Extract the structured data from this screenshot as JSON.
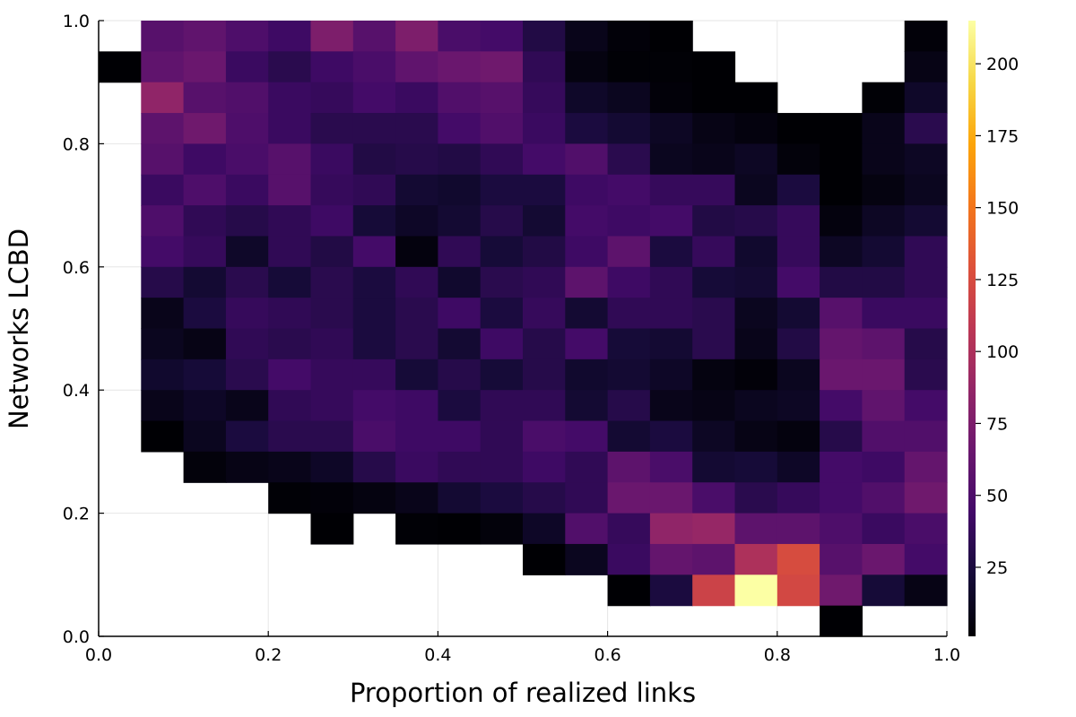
{
  "chart_data": {
    "type": "heatmap",
    "xlabel": "Proportion of realized links",
    "ylabel": "Networks LCBD",
    "xlim": [
      0.0,
      1.0
    ],
    "ylim": [
      0.0,
      1.0
    ],
    "grid": true,
    "legend": "colorbar-right",
    "x_ticks": [
      "0.0",
      "0.2",
      "0.4",
      "0.6",
      "0.8",
      "1.0"
    ],
    "y_ticks": [
      "0.0",
      "0.2",
      "0.4",
      "0.6",
      "0.8",
      "1.0"
    ],
    "colorbar": {
      "colormap": "inferno",
      "min": 1,
      "max": 215,
      "ticks": [
        25,
        50,
        75,
        100,
        125,
        150,
        175,
        200
      ],
      "tick_labels": [
        "25",
        "50",
        "75",
        "100",
        "125",
        "150",
        "175",
        "200"
      ]
    },
    "x_bin_width": 0.05,
    "y_bin_width": 0.05,
    "cells": [
      [
        0.05,
        0.95,
        55
      ],
      [
        0.1,
        0.95,
        60
      ],
      [
        0.15,
        0.95,
        50
      ],
      [
        0.2,
        0.95,
        42
      ],
      [
        0.25,
        0.95,
        75
      ],
      [
        0.3,
        0.95,
        55
      ],
      [
        0.35,
        0.95,
        75
      ],
      [
        0.4,
        0.95,
        48
      ],
      [
        0.45,
        0.95,
        45
      ],
      [
        0.5,
        0.95,
        28
      ],
      [
        0.55,
        0.95,
        10
      ],
      [
        0.6,
        0.95,
        3
      ],
      [
        0.65,
        0.95,
        1
      ],
      [
        0.95,
        0.95,
        3
      ],
      [
        0.0,
        0.9,
        1
      ],
      [
        0.05,
        0.9,
        60
      ],
      [
        0.1,
        0.9,
        65
      ],
      [
        0.15,
        0.9,
        40
      ],
      [
        0.2,
        0.9,
        32
      ],
      [
        0.25,
        0.9,
        42
      ],
      [
        0.3,
        0.9,
        48
      ],
      [
        0.35,
        0.9,
        60
      ],
      [
        0.4,
        0.9,
        65
      ],
      [
        0.45,
        0.9,
        68
      ],
      [
        0.5,
        0.9,
        35
      ],
      [
        0.55,
        0.9,
        6
      ],
      [
        0.6,
        0.9,
        2
      ],
      [
        0.65,
        0.9,
        2
      ],
      [
        0.7,
        0.9,
        1
      ],
      [
        0.95,
        0.9,
        8
      ],
      [
        0.05,
        0.85,
        85
      ],
      [
        0.1,
        0.85,
        55
      ],
      [
        0.15,
        0.85,
        52
      ],
      [
        0.2,
        0.85,
        40
      ],
      [
        0.25,
        0.85,
        38
      ],
      [
        0.3,
        0.85,
        45
      ],
      [
        0.35,
        0.85,
        40
      ],
      [
        0.4,
        0.85,
        52
      ],
      [
        0.45,
        0.85,
        55
      ],
      [
        0.5,
        0.85,
        38
      ],
      [
        0.55,
        0.85,
        16
      ],
      [
        0.6,
        0.85,
        12
      ],
      [
        0.65,
        0.85,
        3
      ],
      [
        0.7,
        0.85,
        1
      ],
      [
        0.75,
        0.85,
        1
      ],
      [
        0.9,
        0.85,
        2
      ],
      [
        0.95,
        0.85,
        16
      ],
      [
        0.05,
        0.8,
        58
      ],
      [
        0.1,
        0.8,
        68
      ],
      [
        0.15,
        0.8,
        50
      ],
      [
        0.2,
        0.8,
        40
      ],
      [
        0.25,
        0.8,
        32
      ],
      [
        0.3,
        0.8,
        32
      ],
      [
        0.35,
        0.8,
        32
      ],
      [
        0.4,
        0.8,
        45
      ],
      [
        0.45,
        0.8,
        52
      ],
      [
        0.5,
        0.8,
        40
      ],
      [
        0.55,
        0.8,
        25
      ],
      [
        0.6,
        0.8,
        20
      ],
      [
        0.65,
        0.8,
        14
      ],
      [
        0.7,
        0.8,
        8
      ],
      [
        0.75,
        0.8,
        5
      ],
      [
        0.8,
        0.8,
        1
      ],
      [
        0.85,
        0.8,
        1
      ],
      [
        0.9,
        0.8,
        10
      ],
      [
        0.95,
        0.8,
        32
      ],
      [
        0.05,
        0.75,
        55
      ],
      [
        0.1,
        0.75,
        42
      ],
      [
        0.15,
        0.75,
        48
      ],
      [
        0.2,
        0.75,
        55
      ],
      [
        0.25,
        0.75,
        40
      ],
      [
        0.3,
        0.75,
        28
      ],
      [
        0.35,
        0.75,
        30
      ],
      [
        0.4,
        0.75,
        28
      ],
      [
        0.45,
        0.75,
        35
      ],
      [
        0.5,
        0.75,
        45
      ],
      [
        0.55,
        0.75,
        52
      ],
      [
        0.6,
        0.75,
        32
      ],
      [
        0.65,
        0.75,
        12
      ],
      [
        0.7,
        0.75,
        10
      ],
      [
        0.75,
        0.75,
        14
      ],
      [
        0.8,
        0.75,
        4
      ],
      [
        0.85,
        0.75,
        1
      ],
      [
        0.9,
        0.75,
        10
      ],
      [
        0.95,
        0.75,
        14
      ],
      [
        0.05,
        0.7,
        40
      ],
      [
        0.1,
        0.7,
        50
      ],
      [
        0.15,
        0.7,
        40
      ],
      [
        0.2,
        0.7,
        55
      ],
      [
        0.25,
        0.7,
        38
      ],
      [
        0.3,
        0.7,
        35
      ],
      [
        0.35,
        0.7,
        20
      ],
      [
        0.4,
        0.7,
        18
      ],
      [
        0.45,
        0.7,
        25
      ],
      [
        0.5,
        0.7,
        25
      ],
      [
        0.55,
        0.7,
        42
      ],
      [
        0.6,
        0.7,
        45
      ],
      [
        0.65,
        0.7,
        38
      ],
      [
        0.7,
        0.7,
        38
      ],
      [
        0.75,
        0.7,
        12
      ],
      [
        0.8,
        0.7,
        25
      ],
      [
        0.85,
        0.7,
        1
      ],
      [
        0.9,
        0.7,
        6
      ],
      [
        0.95,
        0.7,
        12
      ],
      [
        0.05,
        0.65,
        50
      ],
      [
        0.1,
        0.65,
        35
      ],
      [
        0.15,
        0.65,
        30
      ],
      [
        0.2,
        0.65,
        35
      ],
      [
        0.25,
        0.65,
        42
      ],
      [
        0.3,
        0.65,
        22
      ],
      [
        0.35,
        0.65,
        15
      ],
      [
        0.4,
        0.65,
        20
      ],
      [
        0.45,
        0.65,
        30
      ],
      [
        0.5,
        0.65,
        20
      ],
      [
        0.55,
        0.65,
        45
      ],
      [
        0.6,
        0.65,
        42
      ],
      [
        0.65,
        0.65,
        45
      ],
      [
        0.7,
        0.65,
        28
      ],
      [
        0.75,
        0.65,
        30
      ],
      [
        0.8,
        0.65,
        38
      ],
      [
        0.85,
        0.65,
        5
      ],
      [
        0.9,
        0.65,
        14
      ],
      [
        0.95,
        0.65,
        20
      ],
      [
        0.05,
        0.6,
        45
      ],
      [
        0.1,
        0.6,
        38
      ],
      [
        0.15,
        0.6,
        16
      ],
      [
        0.2,
        0.6,
        35
      ],
      [
        0.25,
        0.6,
        28
      ],
      [
        0.3,
        0.6,
        45
      ],
      [
        0.35,
        0.6,
        5
      ],
      [
        0.4,
        0.6,
        35
      ],
      [
        0.45,
        0.6,
        22
      ],
      [
        0.5,
        0.6,
        28
      ],
      [
        0.55,
        0.6,
        42
      ],
      [
        0.6,
        0.6,
        58
      ],
      [
        0.65,
        0.6,
        25
      ],
      [
        0.7,
        0.6,
        38
      ],
      [
        0.75,
        0.6,
        18
      ],
      [
        0.8,
        0.6,
        38
      ],
      [
        0.85,
        0.6,
        14
      ],
      [
        0.9,
        0.6,
        20
      ],
      [
        0.95,
        0.6,
        35
      ],
      [
        0.05,
        0.55,
        30
      ],
      [
        0.1,
        0.55,
        20
      ],
      [
        0.15,
        0.55,
        32
      ],
      [
        0.2,
        0.55,
        22
      ],
      [
        0.25,
        0.55,
        32
      ],
      [
        0.3,
        0.55,
        25
      ],
      [
        0.35,
        0.55,
        35
      ],
      [
        0.4,
        0.55,
        18
      ],
      [
        0.45,
        0.55,
        32
      ],
      [
        0.5,
        0.55,
        35
      ],
      [
        0.55,
        0.55,
        58
      ],
      [
        0.6,
        0.55,
        42
      ],
      [
        0.65,
        0.55,
        35
      ],
      [
        0.7,
        0.55,
        22
      ],
      [
        0.75,
        0.55,
        20
      ],
      [
        0.8,
        0.55,
        45
      ],
      [
        0.85,
        0.55,
        28
      ],
      [
        0.9,
        0.55,
        28
      ],
      [
        0.95,
        0.55,
        35
      ],
      [
        0.05,
        0.5,
        10
      ],
      [
        0.1,
        0.5,
        25
      ],
      [
        0.15,
        0.5,
        38
      ],
      [
        0.2,
        0.5,
        35
      ],
      [
        0.25,
        0.5,
        32
      ],
      [
        0.3,
        0.5,
        25
      ],
      [
        0.35,
        0.5,
        32
      ],
      [
        0.4,
        0.5,
        42
      ],
      [
        0.45,
        0.5,
        25
      ],
      [
        0.5,
        0.5,
        38
      ],
      [
        0.55,
        0.5,
        20
      ],
      [
        0.6,
        0.5,
        35
      ],
      [
        0.65,
        0.5,
        35
      ],
      [
        0.7,
        0.5,
        32
      ],
      [
        0.75,
        0.5,
        12
      ],
      [
        0.8,
        0.5,
        20
      ],
      [
        0.85,
        0.5,
        55
      ],
      [
        0.9,
        0.5,
        40
      ],
      [
        0.95,
        0.5,
        40
      ],
      [
        0.05,
        0.45,
        12
      ],
      [
        0.1,
        0.45,
        8
      ],
      [
        0.15,
        0.45,
        35
      ],
      [
        0.2,
        0.45,
        32
      ],
      [
        0.25,
        0.45,
        35
      ],
      [
        0.3,
        0.45,
        25
      ],
      [
        0.35,
        0.45,
        32
      ],
      [
        0.4,
        0.45,
        20
      ],
      [
        0.45,
        0.45,
        42
      ],
      [
        0.5,
        0.45,
        30
      ],
      [
        0.55,
        0.45,
        45
      ],
      [
        0.6,
        0.45,
        22
      ],
      [
        0.65,
        0.45,
        20
      ],
      [
        0.7,
        0.45,
        32
      ],
      [
        0.75,
        0.45,
        10
      ],
      [
        0.8,
        0.45,
        28
      ],
      [
        0.85,
        0.45,
        62
      ],
      [
        0.9,
        0.45,
        58
      ],
      [
        0.95,
        0.45,
        30
      ],
      [
        0.05,
        0.4,
        18
      ],
      [
        0.1,
        0.4,
        22
      ],
      [
        0.15,
        0.4,
        32
      ],
      [
        0.2,
        0.4,
        45
      ],
      [
        0.25,
        0.4,
        38
      ],
      [
        0.3,
        0.4,
        38
      ],
      [
        0.35,
        0.4,
        22
      ],
      [
        0.4,
        0.4,
        30
      ],
      [
        0.45,
        0.4,
        22
      ],
      [
        0.5,
        0.4,
        30
      ],
      [
        0.55,
        0.4,
        18
      ],
      [
        0.6,
        0.4,
        20
      ],
      [
        0.65,
        0.4,
        15
      ],
      [
        0.7,
        0.4,
        6
      ],
      [
        0.75,
        0.4,
        3
      ],
      [
        0.8,
        0.4,
        12
      ],
      [
        0.85,
        0.4,
        65
      ],
      [
        0.9,
        0.4,
        65
      ],
      [
        0.95,
        0.4,
        32
      ],
      [
        0.05,
        0.35,
        10
      ],
      [
        0.1,
        0.35,
        15
      ],
      [
        0.15,
        0.35,
        10
      ],
      [
        0.2,
        0.35,
        35
      ],
      [
        0.25,
        0.35,
        38
      ],
      [
        0.3,
        0.35,
        45
      ],
      [
        0.35,
        0.35,
        42
      ],
      [
        0.4,
        0.35,
        25
      ],
      [
        0.45,
        0.35,
        35
      ],
      [
        0.5,
        0.35,
        35
      ],
      [
        0.55,
        0.35,
        20
      ],
      [
        0.6,
        0.35,
        30
      ],
      [
        0.65,
        0.35,
        10
      ],
      [
        0.7,
        0.35,
        8
      ],
      [
        0.75,
        0.35,
        12
      ],
      [
        0.8,
        0.35,
        14
      ],
      [
        0.85,
        0.35,
        45
      ],
      [
        0.9,
        0.35,
        60
      ],
      [
        0.95,
        0.35,
        45
      ],
      [
        0.05,
        0.3,
        1
      ],
      [
        0.1,
        0.3,
        12
      ],
      [
        0.15,
        0.3,
        25
      ],
      [
        0.2,
        0.3,
        32
      ],
      [
        0.25,
        0.3,
        32
      ],
      [
        0.3,
        0.3,
        48
      ],
      [
        0.35,
        0.3,
        42
      ],
      [
        0.4,
        0.3,
        42
      ],
      [
        0.45,
        0.3,
        35
      ],
      [
        0.5,
        0.3,
        48
      ],
      [
        0.55,
        0.3,
        45
      ],
      [
        0.6,
        0.3,
        20
      ],
      [
        0.65,
        0.3,
        25
      ],
      [
        0.7,
        0.3,
        14
      ],
      [
        0.75,
        0.3,
        8
      ],
      [
        0.8,
        0.3,
        5
      ],
      [
        0.85,
        0.3,
        30
      ],
      [
        0.9,
        0.3,
        52
      ],
      [
        0.95,
        0.3,
        52
      ],
      [
        0.1,
        0.25,
        4
      ],
      [
        0.15,
        0.25,
        8
      ],
      [
        0.2,
        0.25,
        10
      ],
      [
        0.25,
        0.25,
        15
      ],
      [
        0.3,
        0.25,
        30
      ],
      [
        0.35,
        0.25,
        40
      ],
      [
        0.4,
        0.25,
        35
      ],
      [
        0.45,
        0.25,
        35
      ],
      [
        0.5,
        0.25,
        42
      ],
      [
        0.55,
        0.25,
        35
      ],
      [
        0.6,
        0.25,
        58
      ],
      [
        0.65,
        0.25,
        48
      ],
      [
        0.7,
        0.25,
        20
      ],
      [
        0.75,
        0.25,
        22
      ],
      [
        0.8,
        0.25,
        15
      ],
      [
        0.85,
        0.25,
        45
      ],
      [
        0.9,
        0.25,
        42
      ],
      [
        0.95,
        0.25,
        62
      ],
      [
        0.2,
        0.2,
        2
      ],
      [
        0.25,
        0.2,
        3
      ],
      [
        0.3,
        0.2,
        6
      ],
      [
        0.35,
        0.2,
        10
      ],
      [
        0.4,
        0.2,
        20
      ],
      [
        0.45,
        0.2,
        25
      ],
      [
        0.5,
        0.2,
        30
      ],
      [
        0.55,
        0.2,
        35
      ],
      [
        0.6,
        0.2,
        65
      ],
      [
        0.65,
        0.2,
        65
      ],
      [
        0.7,
        0.2,
        48
      ],
      [
        0.75,
        0.2,
        32
      ],
      [
        0.8,
        0.2,
        38
      ],
      [
        0.85,
        0.2,
        45
      ],
      [
        0.9,
        0.2,
        52
      ],
      [
        0.95,
        0.2,
        68
      ],
      [
        0.25,
        0.15,
        1
      ],
      [
        0.35,
        0.15,
        2
      ],
      [
        0.4,
        0.15,
        1
      ],
      [
        0.45,
        0.15,
        4
      ],
      [
        0.5,
        0.15,
        15
      ],
      [
        0.55,
        0.15,
        52
      ],
      [
        0.6,
        0.15,
        38
      ],
      [
        0.65,
        0.15,
        85
      ],
      [
        0.7,
        0.15,
        88
      ],
      [
        0.75,
        0.15,
        58
      ],
      [
        0.8,
        0.15,
        58
      ],
      [
        0.85,
        0.15,
        50
      ],
      [
        0.9,
        0.15,
        40
      ],
      [
        0.95,
        0.15,
        48
      ],
      [
        0.5,
        0.1,
        1
      ],
      [
        0.55,
        0.1,
        12
      ],
      [
        0.6,
        0.1,
        40
      ],
      [
        0.65,
        0.1,
        62
      ],
      [
        0.7,
        0.1,
        58
      ],
      [
        0.75,
        0.1,
        100
      ],
      [
        0.8,
        0.1,
        125
      ],
      [
        0.85,
        0.1,
        55
      ],
      [
        0.9,
        0.1,
        65
      ],
      [
        0.95,
        0.1,
        45
      ],
      [
        0.6,
        0.05,
        1
      ],
      [
        0.65,
        0.05,
        25
      ],
      [
        0.7,
        0.05,
        118
      ],
      [
        0.75,
        0.05,
        215
      ],
      [
        0.8,
        0.05,
        122
      ],
      [
        0.85,
        0.05,
        68
      ],
      [
        0.9,
        0.05,
        22
      ],
      [
        0.95,
        0.05,
        8
      ],
      [
        0.85,
        0.0,
        1
      ]
    ]
  }
}
